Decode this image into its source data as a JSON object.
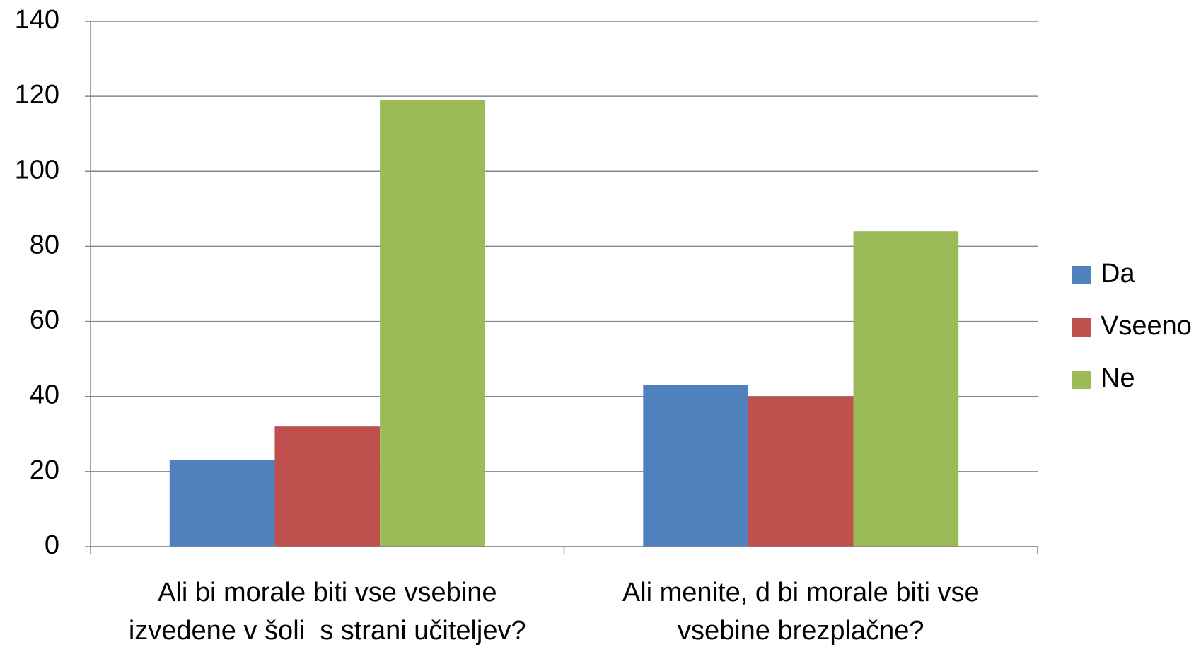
{
  "chart_data": {
    "type": "bar",
    "categories": [
      "Ali bi morale biti vse vsebine izvedene v šoli  s strani učiteljev?",
      "Ali menite, d bi morale biti vse vsebine brezplačne?"
    ],
    "series": [
      {
        "name": "Da",
        "color": "#4f81bd",
        "values": [
          23,
          43
        ]
      },
      {
        "name": "Vseeno",
        "color": "#c0504d",
        "values": [
          32,
          40
        ]
      },
      {
        "name": "Ne",
        "color": "#9bbb59",
        "values": [
          119,
          84
        ]
      }
    ],
    "ylim": [
      0,
      140
    ],
    "yticks": [
      0,
      20,
      40,
      60,
      80,
      100,
      120,
      140
    ],
    "grid": true,
    "legend": "right"
  }
}
